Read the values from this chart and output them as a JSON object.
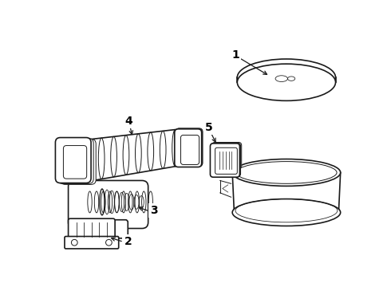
{
  "background_color": "#ffffff",
  "line_color": "#1a1a1a",
  "label_color": "#000000",
  "parts": [
    "1",
    "2",
    "3",
    "4",
    "5"
  ]
}
